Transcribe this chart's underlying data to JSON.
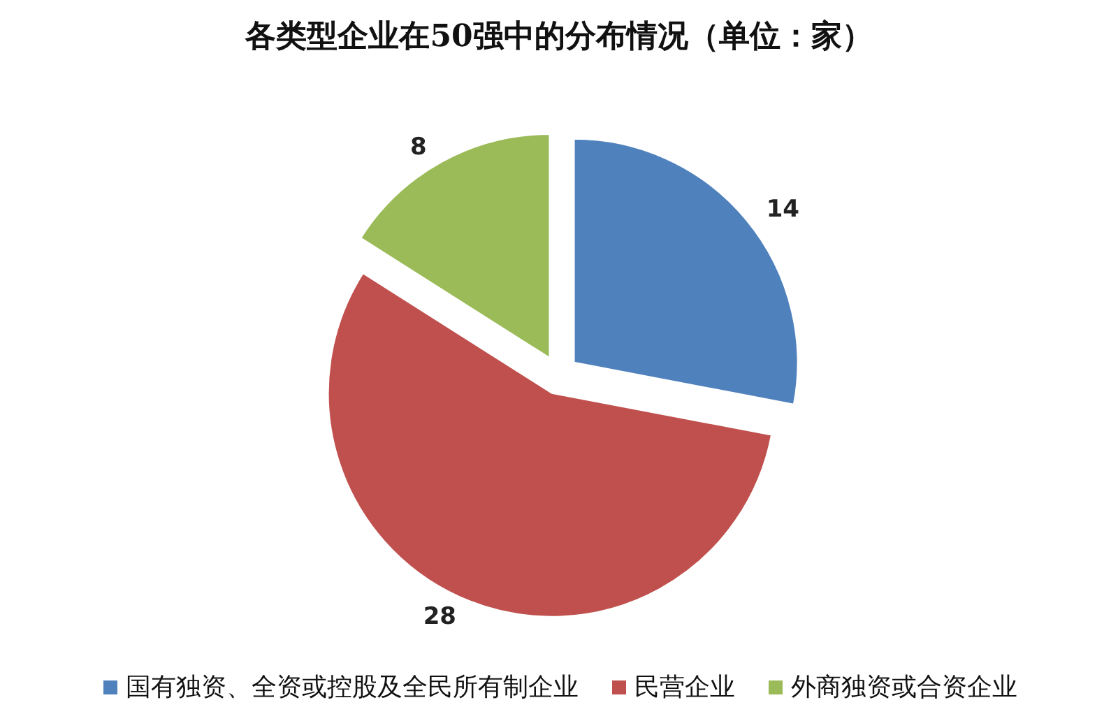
{
  "chart_data": {
    "type": "pie",
    "title": "各类型企业在50强中的分布情况（单位：家）",
    "categories": [
      "国有独资、全资或控股及全民所有制企业",
      "民营企业",
      "外商独资或合资企业"
    ],
    "values": [
      14,
      28,
      8
    ],
    "colors": [
      "#4f81bd",
      "#c0504d",
      "#9bbb59"
    ],
    "data_labels": true,
    "legend": "bottom"
  }
}
